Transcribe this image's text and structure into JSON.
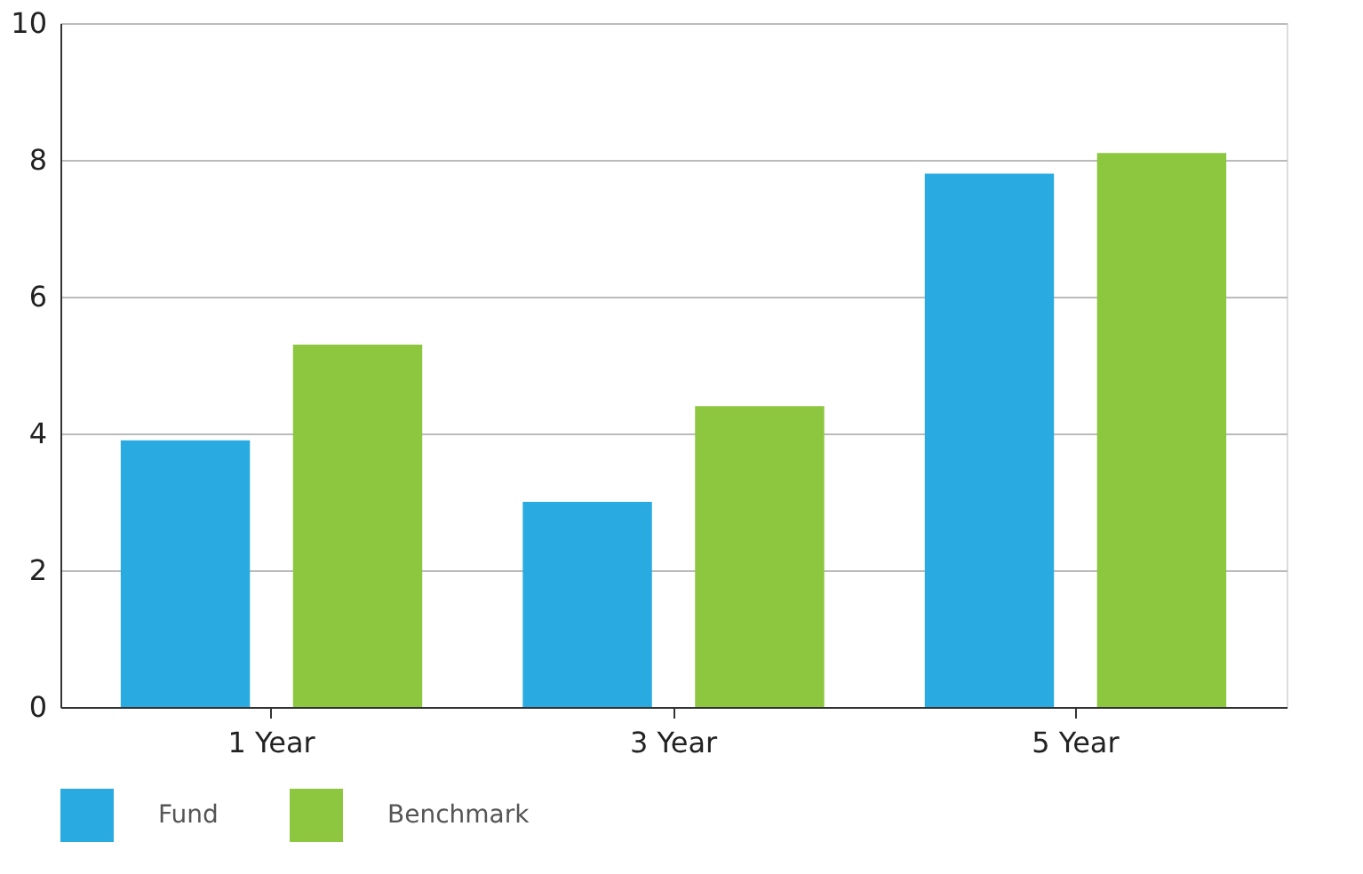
{
  "chart_data": {
    "type": "bar",
    "categories": [
      "1 Year",
      "3 Year",
      "5 Year"
    ],
    "series": [
      {
        "name": "Fund",
        "color": "#29abe2",
        "values": [
          3.9,
          3.0,
          7.8
        ]
      },
      {
        "name": "Benchmark",
        "color": "#8dc63f",
        "values": [
          5.3,
          4.4,
          8.1
        ]
      }
    ],
    "ylim": [
      0,
      10
    ],
    "yticks": [
      0,
      2,
      4,
      6,
      8,
      10
    ],
    "grid": "y",
    "legend": "bottom"
  }
}
